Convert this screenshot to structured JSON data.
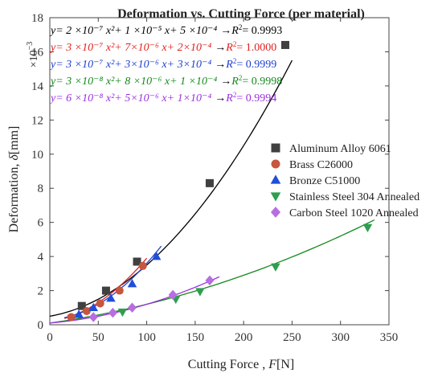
{
  "chart_data": {
    "type": "scatter",
    "title": "Deformation vs. Cutting Force (per material)",
    "xlabel_prefix": "Cutting Force , ",
    "xlabel_var": "F",
    "xlabel_unit": "[N]",
    "ylabel_prefix": "Deformation, ",
    "ylabel_var": "δ",
    "ylabel_unit": "[mm]",
    "y_multiplier": "×10",
    "y_multiplier_exp": "−3",
    "xlim": [
      0,
      350
    ],
    "ylim": [
      0,
      18
    ],
    "xticks": [
      0,
      50,
      100,
      150,
      200,
      250,
      300,
      350
    ],
    "yticks": [
      0,
      2,
      4,
      6,
      8,
      10,
      12,
      14,
      16,
      18
    ],
    "legend_position": "right",
    "series": [
      {
        "name": "Aluminum Alloy 6061",
        "color": "#404040",
        "line_color": "#000000",
        "marker": "square",
        "x": [
          33,
          58,
          90,
          165,
          243
        ],
        "y": [
          1.1,
          2.0,
          3.7,
          8.3,
          16.4
        ],
        "fit": {
          "a": 2e-07,
          "b": 1e-05,
          "c": 0.0005,
          "range": [
            0,
            250
          ]
        },
        "equation": "y= 2 ×10⁻⁷ x²+ 1 ×10⁻⁵ x+ 5 ×10⁻⁴",
        "r2": "0.9993"
      },
      {
        "name": "Brass C26000",
        "color": "#c8553d",
        "line_color": "#e02020",
        "marker": "circle",
        "x": [
          22,
          38,
          52,
          72,
          96
        ],
        "y": [
          0.45,
          0.8,
          1.25,
          2.0,
          3.45
        ],
        "fit": {
          "a": 3e-07,
          "b": 7e-06,
          "c": 0.0002,
          "range": [
            15,
            100
          ]
        },
        "equation": "y= 3 ×10⁻⁷ x²+ 7×10⁻⁶ x+ 2×10⁻⁴",
        "r2": "1.0000"
      },
      {
        "name": "Bronze C51000",
        "color": "#1f4ed8",
        "line_color": "#1f3fd0",
        "marker": "triangle-up",
        "x": [
          30,
          45,
          63,
          85,
          110
        ],
        "y": [
          0.6,
          1.0,
          1.55,
          2.4,
          4.0
        ],
        "fit": {
          "a": 3e-07,
          "b": 3e-06,
          "c": 0.0003,
          "range": [
            15,
            115
          ]
        },
        "equation": "y= 3 ×10⁻⁷ x²+ 3×10⁻⁶ x+ 3×10⁻⁴",
        "r2": "0.9999"
      },
      {
        "name": "Stainless Steel 304 Annealed",
        "color": "#2e9e4f",
        "line_color": "#138a1e",
        "marker": "triangle-down",
        "x": [
          75,
          130,
          155,
          233,
          328
        ],
        "y": [
          0.75,
          1.5,
          1.95,
          3.4,
          5.7
        ],
        "fit": {
          "a": 3e-08,
          "b": 8e-06,
          "c": 0.0001,
          "range": [
            0,
            335
          ]
        },
        "equation": "y= 3 ×10⁻⁸ x²+ 8 ×10⁻⁶ x+ 1 ×10⁻⁴",
        "r2": "0.9998"
      },
      {
        "name": "Carbon Steel 1020 Annealed",
        "color": "#b76ee0",
        "line_color": "#9b30e0",
        "marker": "diamond",
        "x": [
          45,
          65,
          85,
          127,
          165
        ],
        "y": [
          0.45,
          0.7,
          1.0,
          1.75,
          2.6
        ],
        "fit": {
          "a": 6e-08,
          "b": 5e-06,
          "c": 0.0001,
          "range": [
            0,
            175
          ]
        },
        "equation": "y= 6 ×10⁻⁸ x²+ 5×10⁻⁶ x+ 1×10⁻⁴",
        "r2": "0.9994"
      }
    ]
  }
}
